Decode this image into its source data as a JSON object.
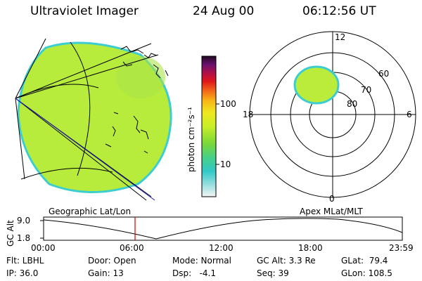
{
  "header": {
    "instrument": "Ultraviolet Imager",
    "date": "24 Aug 00",
    "time": "06:12:56 UT"
  },
  "colorbar": {
    "unit_label": "photon cm⁻²s⁻¹",
    "tick_100": "100",
    "tick_10": "10"
  },
  "polar_plot": {
    "labels": [
      "12",
      "18",
      "6",
      "0",
      "60",
      "70",
      "80"
    ]
  },
  "timeline": {
    "left_title": "Geographic Lat/Lon",
    "right_title": "Apex MLat/MLT",
    "y_label": "GC Alt",
    "y_ticks": [
      "9.0",
      "1.8"
    ],
    "x_ticks": [
      "00:00",
      "06:00",
      "12:00",
      "18:00",
      "23:59"
    ]
  },
  "info": {
    "col1": [
      "Flt: LBHL",
      "IP: 36.0"
    ],
    "col2": [
      "Door: Open",
      "Gain: 13"
    ],
    "col3": [
      "Mode: Normal",
      "Dsp:   -4.1"
    ],
    "col4": [
      "GC Alt: 3.3 Re",
      "Seq: 39"
    ],
    "col5": [
      "GLat:  79.4",
      "GLon: 108.5"
    ]
  },
  "colors": {
    "disk_fill": "#b8ec3c",
    "disk_edge": "#3ccdd0",
    "oval_fill": "#bbec3c",
    "marker": "#d00000"
  }
}
